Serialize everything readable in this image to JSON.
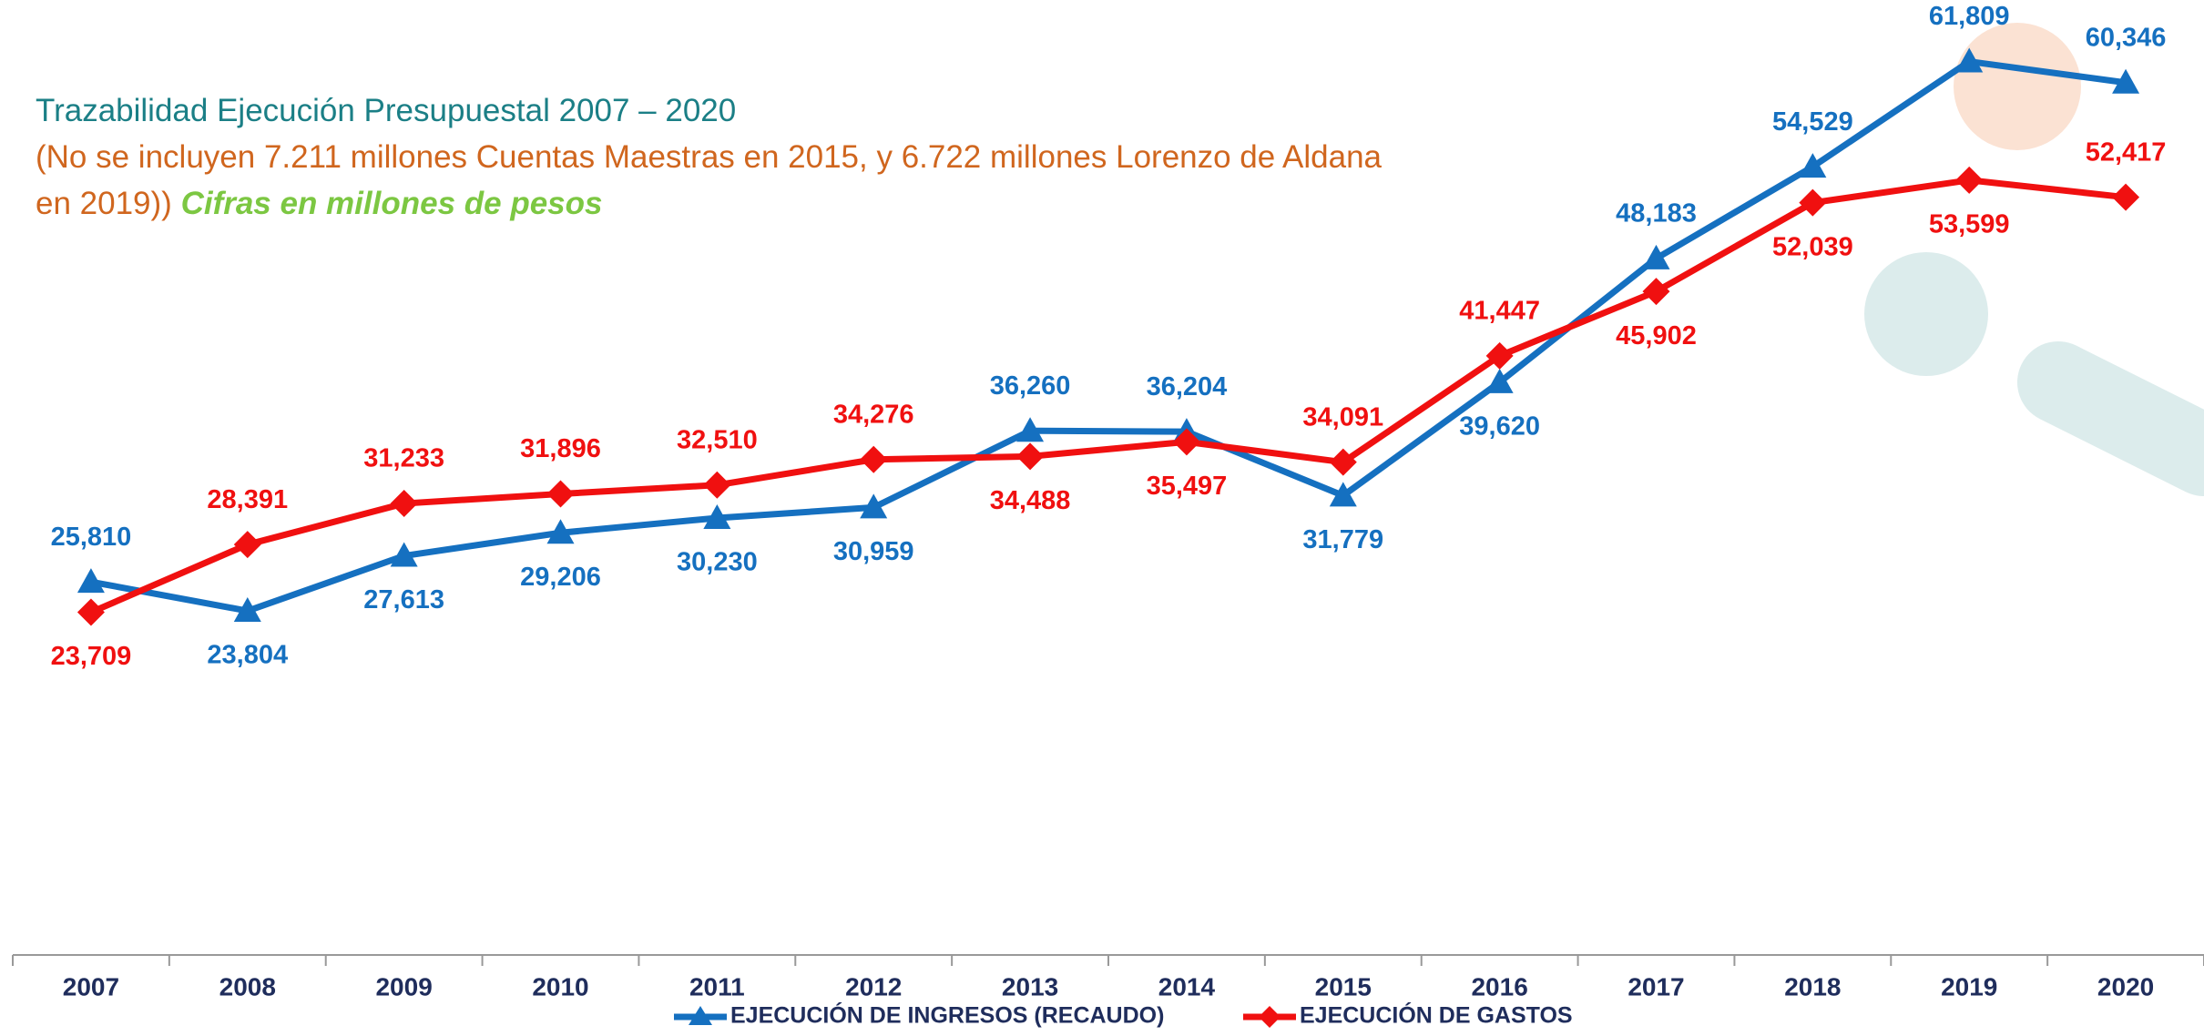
{
  "chart_data": {
    "type": "line",
    "title": "Trazabilidad Ejecución Presupuestal 2007 – 2020",
    "subtitle": "(No se incluyen 7.211 millones Cuentas Maestras en 2015,  y 6.722 millones Lorenzo de Aldana en 2019))",
    "note": "Cifras en millones de pesos",
    "categories": [
      "2007",
      "2008",
      "2009",
      "2010",
      "2011",
      "2012",
      "2013",
      "2014",
      "2015",
      "2016",
      "2017",
      "2018",
      "2019",
      "2020"
    ],
    "series": [
      {
        "name": "EJECUCIÓN DE INGRESOS (RECAUDO)",
        "color": "#1570c0",
        "marker": "triangle",
        "values": [
          25810,
          23804,
          27613,
          29206,
          30230,
          30959,
          36260,
          36204,
          31779,
          39620,
          48183,
          54529,
          61809,
          60346
        ],
        "value_labels": [
          "25,810",
          "23,804",
          "27,613",
          "29,206",
          "30,230",
          "30,959",
          "36,260",
          "36,204",
          "31,779",
          "39,620",
          "48,183",
          "54,529",
          "61,809",
          "60,346"
        ]
      },
      {
        "name": "EJECUCIÓN DE GASTOS",
        "color": "#f01010",
        "marker": "diamond",
        "values": [
          23709,
          28391,
          31233,
          31896,
          32510,
          34276,
          34488,
          35497,
          34091,
          41447,
          45902,
          52039,
          53599,
          52417
        ],
        "value_labels": [
          "23,709",
          "28,391",
          "31,233",
          "31,896",
          "32,510",
          "34,276",
          "34,488",
          "35,497",
          "34,091",
          "41,447",
          "45,902",
          "52,039",
          "53,599",
          "52,417"
        ]
      }
    ],
    "ylim": [
      0,
      66000
    ]
  }
}
